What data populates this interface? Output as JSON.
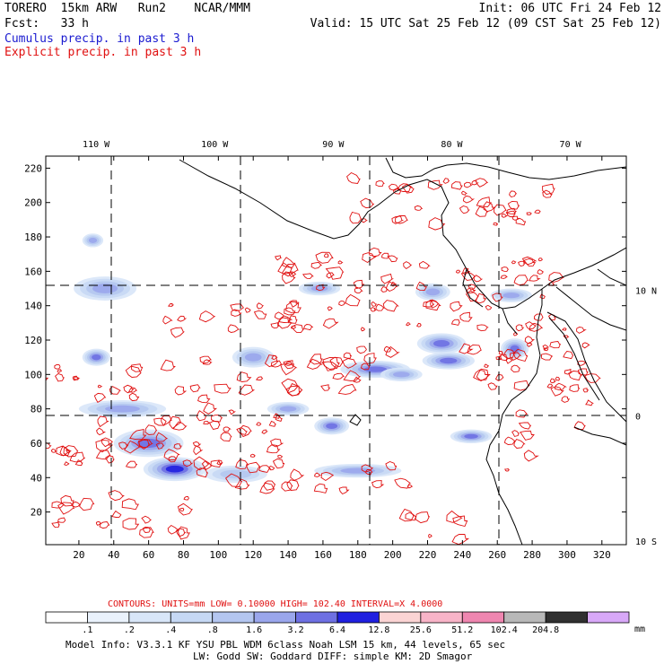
{
  "header": {
    "line1_left": "TORERO  15km ARW   Run2    NCAR/MMM",
    "line1_right": "Init: 06 UTC Fri 24 Feb 12",
    "line2_left": "Fcst:   33 h",
    "line2_right": "Valid: 15 UTC Sat 25 Feb 12 (09 CST Sat 25 Feb 12)",
    "cumulus_label": "Cumulus precip. in past 3 h",
    "explicit_label": "Explicit precip. in past 3 h"
  },
  "colors": {
    "cumulus": "#1a1ad0",
    "explicit": "#e01010",
    "map": "#000000"
  },
  "chart_data": {
    "type": "heatmap",
    "title": "Cumulus and explicit precip. in past 3 h",
    "x_ticks": [
      20,
      40,
      60,
      80,
      100,
      120,
      140,
      160,
      180,
      200,
      220,
      240,
      260,
      280,
      300,
      320
    ],
    "y_ticks": [
      20,
      40,
      60,
      80,
      100,
      120,
      140,
      160,
      180,
      200,
      220
    ],
    "xlim": [
      1,
      334
    ],
    "ylim": [
      1,
      227
    ],
    "lon_labels": [
      {
        "text": "110 W",
        "x": 34
      },
      {
        "text": "100 W",
        "x": 102
      },
      {
        "text": "90 W",
        "x": 170
      },
      {
        "text": "80 W",
        "x": 238
      },
      {
        "text": "70 W",
        "x": 306
      }
    ],
    "lat_labels": [
      {
        "text": "10 N",
        "y": 149
      },
      {
        "text": "0",
        "y": 76
      },
      {
        "text": "10 S",
        "y": 3
      }
    ],
    "contours_line": "CONTOURS:  UNITS=mm  LOW= 0.10000      HIGH=  102.40      INTERVAL=X  4.0000",
    "colorbar": {
      "labels": [
        ".1",
        ".2",
        ".4",
        ".8",
        "1.6",
        "3.2",
        "6.4",
        "12.8",
        "25.6",
        "51.2",
        "102.4",
        "204.8"
      ],
      "colors": [
        "#ffffff",
        "#eaf2fc",
        "#d8e6f8",
        "#c6d8f4",
        "#b4c6f0",
        "#9aa6ec",
        "#6e70e2",
        "#2020e0",
        "#fbd4d4",
        "#f8b4c8",
        "#ef86b0",
        "#b8b8b8",
        "#303030",
        "#d8a8f8"
      ],
      "unit": "mm"
    },
    "explicit_regions": [
      [
        232,
        200,
        60,
        14
      ],
      [
        170,
        160,
        50,
        12
      ],
      [
        110,
        132,
        40,
        10
      ],
      [
        25,
        95,
        30,
        10
      ],
      [
        75,
        55,
        70,
        8
      ],
      [
        40,
        65,
        40,
        10
      ],
      [
        170,
        112,
        30,
        6
      ],
      [
        265,
        130,
        30,
        40
      ],
      [
        180,
        135,
        45,
        9
      ],
      [
        130,
        100,
        60,
        10
      ],
      [
        45,
        18,
        40,
        12
      ],
      [
        220,
        10,
        20,
        8
      ],
      [
        270,
        60,
        10,
        18
      ],
      [
        300,
        100,
        15,
        30
      ],
      [
        110,
        75,
        30,
        12
      ],
      [
        150,
        40,
        60,
        8
      ]
    ],
    "cumulus_regions": [
      [
        75,
        45,
        18,
        7,
        7
      ],
      [
        60,
        60,
        20,
        8,
        6
      ],
      [
        45,
        80,
        25,
        5,
        5
      ],
      [
        30,
        110,
        8,
        5,
        6
      ],
      [
        35,
        150,
        18,
        7,
        5
      ],
      [
        190,
        103,
        20,
        5,
        6
      ],
      [
        232,
        108,
        15,
        5,
        6
      ],
      [
        205,
        100,
        12,
        4,
        5
      ],
      [
        270,
        115,
        8,
        6,
        6
      ],
      [
        245,
        64,
        12,
        4,
        6
      ],
      [
        140,
        80,
        12,
        4,
        5
      ],
      [
        158,
        150,
        12,
        4,
        5
      ],
      [
        223,
        148,
        10,
        5,
        5
      ],
      [
        268,
        146,
        12,
        4,
        5
      ],
      [
        120,
        110,
        12,
        6,
        5
      ],
      [
        180,
        44,
        25,
        4,
        5
      ],
      [
        110,
        42,
        18,
        5,
        4
      ],
      [
        28,
        178,
        6,
        4,
        5
      ],
      [
        228,
        118,
        14,
        6,
        6
      ],
      [
        165,
        70,
        10,
        5,
        6
      ]
    ]
  },
  "footer": {
    "model_info": "Model Info: V3.3.1   KF      YSU PBL   WDM 6class  Noah LSM  15 km,    44 levels,    65 sec",
    "model_info2": "LW: Godd SW: Goddard DIFF: simple KM: 2D Smagor"
  }
}
